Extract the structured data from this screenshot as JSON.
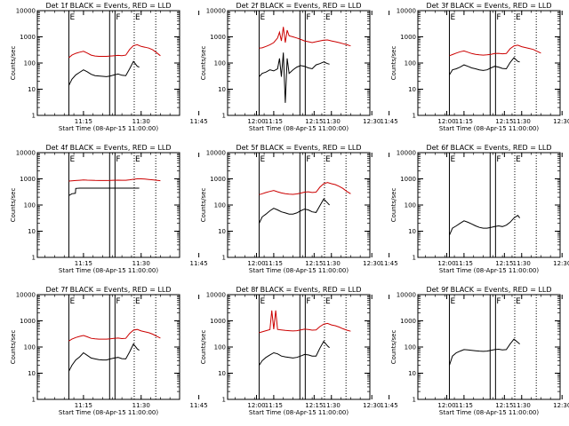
{
  "chart_data": {
    "type": "line",
    "ylabel": "Counts/sec",
    "xlabel": "Start Time (08-Apr-15 11:00:00)",
    "x_ticks": [
      "11:15",
      "11:30",
      "11:45",
      "12:00",
      "12:15",
      "12:30"
    ],
    "y_ticks": [
      "1",
      "10",
      "100",
      "1000",
      "10000"
    ],
    "xlim_minutes_after_11": [
      3,
      40
    ],
    "ylim": [
      1,
      10000
    ],
    "y_scale": "log",
    "colors": {
      "black_series": "#000000",
      "red_series": "#cc0000",
      "marker_line": "#000000"
    },
    "marker_labels": {
      "solid_left": "E",
      "solid_right": "F",
      "dotted": "E"
    },
    "panels": [
      {
        "title": "Det 1f BLACK = Events, RED = LLD",
        "series": [
          {
            "name": "BLACK = Events",
            "color": "#000000",
            "x": [
              11.2,
              12,
              13,
              14,
              15,
              16,
              17,
              18,
              19,
              20,
              21,
              22,
              23,
              24,
              25,
              26,
              27,
              28,
              29,
              29.5
            ],
            "y": [
              14,
              24,
              35,
              44,
              55,
              46,
              37,
              33,
              32,
              31,
              30,
              32,
              35,
              38,
              34,
              33,
              60,
              115,
              75,
              70
            ]
          },
          {
            "name": "RED = LLD",
            "color": "#cc0000",
            "x": [
              11.2,
              12,
              13,
              14,
              15,
              16,
              17,
              18,
              19,
              20,
              21,
              22,
              23,
              24,
              25,
              26,
              27,
              28,
              29,
              30,
              31,
              32,
              33,
              34,
              35
            ],
            "y": [
              160,
              200,
              235,
              260,
              280,
              240,
              200,
              185,
              180,
              180,
              180,
              185,
              190,
              195,
              190,
              200,
              330,
              460,
              500,
              430,
              400,
              370,
              320,
              250,
              190
            ]
          }
        ],
        "markers_solid": [
          11.2,
          21.8,
          23.2
        ],
        "markers_dotted": [
          28.2,
          33.8
        ]
      },
      {
        "title": "Det 2f BLACK = Events, RED = LLD",
        "series": [
          {
            "name": "BLACK = Events",
            "color": "#000000",
            "x": [
              11.2,
              12,
              13,
              14,
              15,
              16,
              16.5,
              17,
              17.5,
              18,
              18.5,
              19,
              20,
              21,
              22,
              23,
              24,
              25,
              26,
              27,
              28,
              29,
              29.5
            ],
            "y": [
              30,
              40,
              45,
              55,
              50,
              60,
              150,
              30,
              250,
              3,
              150,
              40,
              55,
              70,
              80,
              75,
              65,
              60,
              85,
              95,
              110,
              95,
              90
            ]
          },
          {
            "name": "RED = LLD",
            "color": "#cc0000",
            "x": [
              11.2,
              12,
              13,
              14,
              15,
              16,
              16.5,
              17,
              17.5,
              18,
              18.5,
              19,
              20,
              21,
              22,
              23,
              24,
              25,
              26,
              27,
              28,
              29,
              30,
              31,
              32,
              33,
              34,
              35
            ],
            "y": [
              370,
              380,
              430,
              500,
              600,
              900,
              1500,
              700,
              2400,
              600,
              1800,
              1100,
              1000,
              900,
              800,
              700,
              650,
              600,
              650,
              700,
              750,
              760,
              700,
              650,
              600,
              550,
              500,
              450
            ]
          }
        ],
        "markers_solid": [
          11.2,
          21.8,
          23.2
        ],
        "markers_dotted": [
          28.2,
          33.8
        ]
      },
      {
        "title": "Det 3f BLACK = Events, RED = LLD",
        "series": [
          {
            "name": "BLACK = Events",
            "color": "#000000",
            "x": [
              11.2,
              12,
              13,
              14,
              15,
              16,
              17,
              18,
              19,
              20,
              21,
              22,
              23,
              24,
              25,
              26,
              27,
              28,
              29,
              29.5
            ],
            "y": [
              35,
              55,
              60,
              70,
              85,
              75,
              65,
              60,
              55,
              52,
              55,
              65,
              75,
              70,
              62,
              60,
              105,
              160,
              115,
              110
            ]
          },
          {
            "name": "RED = LLD",
            "color": "#cc0000",
            "x": [
              11.2,
              12,
              13,
              14,
              15,
              16,
              17,
              18,
              19,
              20,
              21,
              22,
              23,
              24,
              25,
              26,
              27,
              28,
              29,
              30,
              31,
              32,
              33,
              34,
              35
            ],
            "y": [
              190,
              210,
              240,
              270,
              290,
              260,
              230,
              215,
              205,
              200,
              205,
              215,
              230,
              235,
              225,
              230,
              350,
              450,
              480,
              420,
              390,
              360,
              330,
              280,
              240
            ]
          }
        ],
        "markers_solid": [
          11.2,
          21.8,
          23.2
        ],
        "markers_dotted": [
          28.2,
          33.8
        ]
      },
      {
        "title": "Det 4f BLACK = Events, RED = LLD",
        "series": [
          {
            "name": "BLACK = Events",
            "color": "#000000",
            "x": [
              11.2,
              12,
              12.9,
              13,
              14,
              15,
              16,
              17,
              18,
              19,
              20,
              21,
              22,
              23,
              24,
              25,
              26,
              27,
              28,
              29,
              29.5
            ],
            "y": [
              230,
              270,
              280,
              430,
              440,
              440,
              440,
              440,
              440,
              440,
              440,
              440,
              440,
              440,
              440,
              440,
              440,
              440,
              440,
              440,
              440
            ]
          },
          {
            "name": "RED = LLD",
            "color": "#cc0000",
            "x": [
              11.2,
              12,
              13,
              14,
              15,
              16,
              17,
              18,
              19,
              20,
              21,
              22,
              23,
              24,
              25,
              26,
              27,
              28,
              29,
              30,
              31,
              32,
              33,
              34,
              35
            ],
            "y": [
              820,
              840,
              860,
              880,
              900,
              890,
              880,
              870,
              860,
              860,
              860,
              870,
              880,
              890,
              880,
              880,
              920,
              960,
              1000,
              1000,
              980,
              950,
              920,
              880,
              850
            ]
          }
        ],
        "markers_solid": [
          11.2,
          21.8,
          23.2
        ],
        "markers_dotted": [
          28.2,
          33.8
        ]
      },
      {
        "title": "Det 5f BLACK = Events, RED = LLD",
        "series": [
          {
            "name": "BLACK = Events",
            "color": "#000000",
            "x": [
              11.2,
              12,
              13,
              14,
              15,
              16,
              17,
              18,
              19,
              20,
              21,
              22,
              23,
              24,
              25,
              26,
              27,
              28,
              29,
              29.5
            ],
            "y": [
              20,
              35,
              45,
              60,
              75,
              65,
              55,
              50,
              45,
              45,
              50,
              60,
              70,
              65,
              55,
              52,
              95,
              170,
              120,
              100
            ]
          },
          {
            "name": "RED = LLD",
            "color": "#cc0000",
            "x": [
              11.2,
              12,
              13,
              14,
              15,
              16,
              17,
              18,
              19,
              20,
              21,
              22,
              23,
              24,
              25,
              26,
              27,
              28,
              29,
              30,
              31,
              32,
              33,
              34,
              35
            ],
            "y": [
              250,
              270,
              300,
              330,
              360,
              320,
              290,
              270,
              260,
              255,
              265,
              285,
              310,
              320,
              300,
              310,
              480,
              650,
              720,
              650,
              600,
              520,
              430,
              330,
              270
            ]
          }
        ],
        "markers_solid": [
          11.2,
          21.8,
          23.2
        ],
        "markers_dotted": [
          28.2,
          33.8
        ]
      },
      {
        "title": "Det 6f BLACK = Events, RED = LLD",
        "series": [
          {
            "name": "BLACK = Events",
            "color": "#000000",
            "x": [
              11.2,
              12,
              13,
              14,
              15,
              16,
              17,
              18,
              19,
              20,
              21,
              22,
              23,
              24,
              25,
              26,
              27,
              28,
              29,
              29.5
            ],
            "y": [
              7,
              13,
              16,
              20,
              25,
              22,
              19,
              16,
              14,
              13,
              13,
              14,
              15,
              16,
              15,
              17,
              22,
              32,
              40,
              32
            ]
          }
        ],
        "markers_solid": [
          11.2,
          21.8,
          23.2
        ],
        "markers_dotted": [
          28.2,
          33.8
        ]
      },
      {
        "title": "Det 7f BLACK = Events, RED = LLD",
        "series": [
          {
            "name": "BLACK = Events",
            "color": "#000000",
            "x": [
              11.2,
              12,
              13,
              14,
              15,
              16,
              17,
              18,
              19,
              20,
              21,
              22,
              23,
              24,
              25,
              26,
              27,
              28,
              29,
              29.5
            ],
            "y": [
              12,
              20,
              32,
              42,
              60,
              48,
              38,
              35,
              33,
              32,
              32,
              35,
              38,
              40,
              36,
              35,
              65,
              130,
              85,
              75
            ]
          },
          {
            "name": "RED = LLD",
            "color": "#cc0000",
            "x": [
              11.2,
              12,
              13,
              14,
              15,
              16,
              17,
              18,
              19,
              20,
              21,
              22,
              23,
              24,
              25,
              26,
              27,
              28,
              29,
              30,
              31,
              32,
              33,
              34,
              35
            ],
            "y": [
              170,
              200,
              230,
              255,
              275,
              245,
              215,
              205,
              200,
              200,
              200,
              205,
              215,
              220,
              210,
              215,
              330,
              440,
              470,
              410,
              380,
              350,
              310,
              260,
              220
            ]
          }
        ],
        "markers_solid": [
          11.2,
          21.8,
          23.2
        ],
        "markers_dotted": [
          28.2,
          33.8
        ]
      },
      {
        "title": "Det 8f BLACK = Events, RED = LLD",
        "series": [
          {
            "name": "BLACK = Events",
            "color": "#000000",
            "x": [
              11.2,
              12,
              13,
              14,
              15,
              16,
              17,
              18,
              19,
              20,
              21,
              22,
              23,
              24,
              25,
              26,
              27,
              28,
              29,
              29.5
            ],
            "y": [
              20,
              30,
              40,
              50,
              60,
              55,
              45,
              42,
              40,
              38,
              40,
              45,
              52,
              50,
              45,
              45,
              90,
              165,
              110,
              95
            ]
          },
          {
            "name": "RED = LLD",
            "color": "#cc0000",
            "x": [
              11.2,
              12,
              13,
              14,
              14.5,
              15,
              15.5,
              16,
              17,
              18,
              19,
              20,
              21,
              22,
              23,
              24,
              25,
              26,
              27,
              28,
              29,
              30,
              31,
              32,
              33,
              34,
              35
            ],
            "y": [
              350,
              380,
              420,
              460,
              2500,
              480,
              2500,
              470,
              450,
              430,
              420,
              410,
              420,
              450,
              480,
              470,
              440,
              450,
              600,
              750,
              800,
              700,
              650,
              580,
              500,
              440,
              400
            ]
          }
        ],
        "markers_solid": [
          11.2,
          21.8,
          23.2
        ],
        "markers_dotted": [
          28.2,
          33.8
        ]
      },
      {
        "title": "Det 9f BLACK = Events, RED = LLD",
        "series": [
          {
            "name": "BLACK = Events",
            "color": "#000000",
            "x": [
              11.2,
              12,
              13,
              14,
              15,
              16,
              17,
              18,
              19,
              20,
              21,
              22,
              23,
              24,
              25,
              26,
              27,
              28,
              29,
              29.5
            ],
            "y": [
              20,
              45,
              60,
              70,
              80,
              78,
              75,
              72,
              70,
              68,
              70,
              75,
              80,
              82,
              78,
              80,
              130,
              200,
              150,
              130
            ]
          }
        ],
        "markers_solid": [
          11.2,
          21.8,
          23.2
        ],
        "markers_dotted": [
          28.2,
          33.8
        ]
      }
    ]
  }
}
